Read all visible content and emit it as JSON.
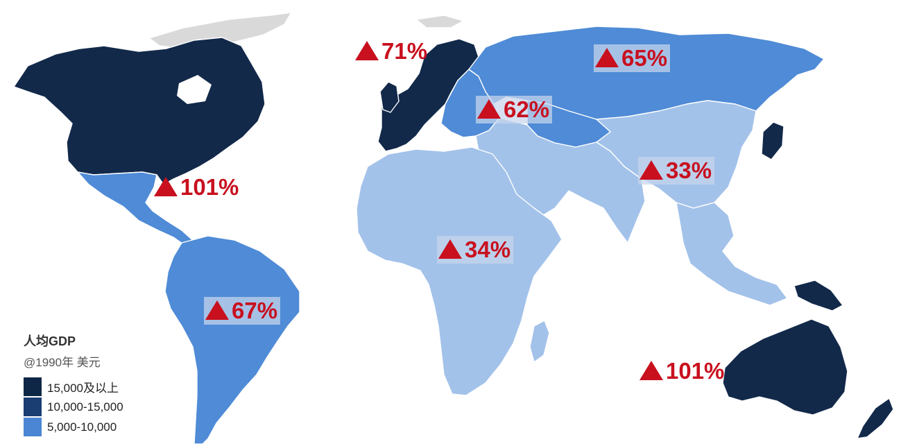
{
  "legend": {
    "title": "人均GDP",
    "subtitle": "@1990年 美元",
    "items": [
      {
        "label": "15,000及以上",
        "color": "#0f2746"
      },
      {
        "label": "10,000-15,000",
        "color": "#1a3e72"
      },
      {
        "label": "5,000-10,000",
        "color": "#4a86d4"
      }
    ]
  },
  "colors": {
    "light": "#a3c2ea",
    "medium": "#4f8bd6",
    "dark": "#12294a",
    "ice": "#d9d9d9",
    "accent": "#c8101e"
  },
  "callouts": {
    "western_europe": "71%",
    "russia": "65%",
    "eastern_europe": "62%",
    "north_america": "101%",
    "china": "33%",
    "africa": "34%",
    "south_america": "67%",
    "australia": "101%"
  }
}
